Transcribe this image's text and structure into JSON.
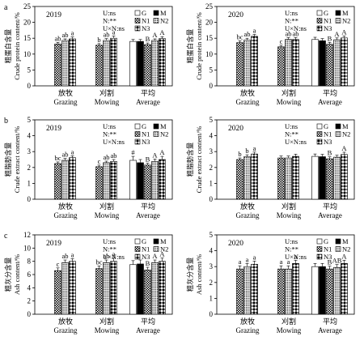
{
  "patterns": {
    "G": "white",
    "M": "black",
    "N1": "checker",
    "N2": "dots",
    "N3": "diamond"
  },
  "legend": {
    "keys": [
      "G",
      "M",
      "N1",
      "N2",
      "N3"
    ],
    "stats": [
      [
        "U:ns",
        "N:**",
        "U×N:ns"
      ],
      [
        "U:ns",
        "N:**",
        "U×N:ns"
      ],
      [
        "U:ns",
        "N:**",
        "U×N:ns"
      ]
    ]
  },
  "chart_data": [
    {
      "type": "bar",
      "row_label": "a",
      "year": "2019",
      "ylabel_cn": "粗蛋白含量",
      "ylabel_en": "Crude protein content/%",
      "ylim": [
        0,
        25
      ],
      "yticks": [
        0,
        5,
        10,
        15,
        20,
        25
      ],
      "groups": [
        {
          "cn": "放牧",
          "en": "Grazing"
        },
        {
          "cn": "刈割",
          "en": "Mowing"
        },
        {
          "cn": "平均",
          "en": "Average"
        }
      ],
      "series": [
        "G",
        "M",
        "N1",
        "N2",
        "N3"
      ],
      "values": [
        [
          null,
          null,
          13.2,
          14.3,
          14.8
        ],
        [
          null,
          null,
          12.8,
          14.3,
          15.0
        ],
        [
          14.0,
          14.0,
          13.0,
          14.3,
          14.9
        ]
      ],
      "errors": [
        [
          null,
          null,
          0.5,
          0.5,
          0.6
        ],
        [
          null,
          null,
          0.5,
          0.6,
          0.7
        ],
        [
          0.6,
          0.6,
          0.5,
          0.5,
          0.6
        ]
      ],
      "letters": [
        [
          "",
          "",
          "ab",
          "ab",
          "a"
        ],
        [
          "",
          "",
          "b",
          "ab",
          "a"
        ],
        [
          "",
          "",
          "B",
          "A",
          "A"
        ]
      ]
    },
    {
      "type": "bar",
      "row_label": "",
      "year": "2020",
      "ylabel_cn": "粗蛋白含量",
      "ylabel_en": "Crude protein content/%",
      "ylim": [
        0,
        25
      ],
      "yticks": [
        0,
        5,
        10,
        15,
        20,
        25
      ],
      "groups": [
        {
          "cn": "放牧",
          "en": "Grazing"
        },
        {
          "cn": "刈割",
          "en": "Mowing"
        },
        {
          "cn": "平均",
          "en": "Average"
        }
      ],
      "series": [
        "G",
        "M",
        "N1",
        "N2",
        "N3"
      ],
      "values": [
        [
          null,
          null,
          13.6,
          14.4,
          15.6
        ],
        [
          null,
          null,
          12.3,
          14.6,
          14.6
        ],
        [
          14.6,
          14.2,
          13.1,
          14.5,
          15.1
        ]
      ],
      "errors": [
        [
          null,
          null,
          0.6,
          0.6,
          0.6
        ],
        [
          null,
          null,
          0.5,
          0.6,
          0.6
        ],
        [
          0.7,
          0.7,
          0.6,
          0.6,
          0.6
        ]
      ],
      "letters": [
        [
          "",
          "",
          "bc",
          "ab",
          "a"
        ],
        [
          "",
          "",
          "c",
          "ab",
          "ab"
        ],
        [
          "",
          "",
          "B",
          "A",
          "A"
        ]
      ]
    },
    {
      "type": "bar",
      "row_label": "b",
      "year": "2019",
      "ylabel_cn": "粗脂肪含量",
      "ylabel_en": "Crude extract content/%",
      "ylim": [
        0,
        5
      ],
      "yticks": [
        0,
        1,
        2,
        3,
        4,
        5
      ],
      "groups": [
        {
          "cn": "放牧",
          "en": "Grazing"
        },
        {
          "cn": "刈割",
          "en": "Mowing"
        },
        {
          "cn": "平均",
          "en": "Average"
        }
      ],
      "series": [
        "G",
        "M",
        "N1",
        "N2",
        "N3"
      ],
      "values": [
        [
          null,
          null,
          2.25,
          2.45,
          2.62
        ],
        [
          null,
          null,
          2.05,
          2.3,
          2.38
        ],
        [
          2.45,
          2.3,
          2.15,
          2.38,
          2.5
        ]
      ],
      "errors": [
        [
          null,
          null,
          0.1,
          0.12,
          0.12
        ],
        [
          null,
          null,
          0.1,
          0.1,
          0.12
        ],
        [
          0.25,
          0.2,
          0.12,
          0.15,
          0.2
        ]
      ],
      "letters": [
        [
          "",
          "",
          "bc",
          "ab",
          "a"
        ],
        [
          "",
          "",
          "c",
          "ab",
          "ab"
        ],
        [
          "#",
          "",
          "B",
          "A",
          "A"
        ]
      ]
    },
    {
      "type": "bar",
      "row_label": "",
      "year": "2020",
      "ylabel_cn": "粗脂肪含量",
      "ylabel_en": "Crude extract content/%",
      "ylim": [
        0,
        5
      ],
      "yticks": [
        0,
        1,
        2,
        3,
        4,
        5
      ],
      "groups": [
        {
          "cn": "放牧",
          "en": "Grazing"
        },
        {
          "cn": "刈割",
          "en": "Mowing"
        },
        {
          "cn": "平均",
          "en": "Average"
        }
      ],
      "series": [
        "G",
        "M",
        "N1",
        "N2",
        "N3"
      ],
      "values": [
        [
          null,
          null,
          2.5,
          2.68,
          2.85
        ],
        [
          null,
          null,
          2.6,
          2.6,
          2.7
        ],
        [
          2.7,
          2.68,
          2.55,
          2.65,
          2.82
        ]
      ],
      "errors": [
        [
          null,
          null,
          0.1,
          0.12,
          0.12
        ],
        [
          null,
          null,
          0.12,
          0.12,
          0.14
        ],
        [
          0.15,
          0.15,
          0.12,
          0.12,
          0.14
        ]
      ],
      "letters": [
        [
          "",
          "",
          "b",
          "b",
          "a"
        ],
        [
          "",
          "",
          "",
          "",
          ""
        ],
        [
          "",
          "",
          "B",
          "",
          "A"
        ]
      ]
    },
    {
      "type": "bar",
      "row_label": "c",
      "year": "2019",
      "ylabel_cn": "粗灰分含量",
      "ylabel_en": "Ash content/%",
      "ylim": [
        0,
        12
      ],
      "yticks": [
        0,
        2,
        4,
        6,
        8,
        10,
        12
      ],
      "groups": [
        {
          "cn": "放牧",
          "en": "Grazing"
        },
        {
          "cn": "刈割",
          "en": "Mowing"
        },
        {
          "cn": "平均",
          "en": "Average"
        }
      ],
      "series": [
        "G",
        "M",
        "N1",
        "N2",
        "N3"
      ],
      "values": [
        [
          null,
          null,
          6.6,
          7.8,
          8.0
        ],
        [
          null,
          null,
          6.9,
          7.8,
          8.0
        ],
        [
          7.5,
          7.6,
          6.7,
          7.8,
          8.0
        ]
      ],
      "errors": [
        [
          null,
          null,
          0.4,
          0.4,
          0.4
        ],
        [
          null,
          null,
          0.4,
          0.4,
          0.5
        ],
        [
          0.6,
          0.6,
          0.4,
          0.4,
          0.5
        ]
      ],
      "letters": [
        [
          "",
          "",
          "c",
          "ab",
          "a"
        ],
        [
          "",
          "",
          "bc",
          "ab",
          "a"
        ],
        [
          "",
          "",
          "B",
          "A",
          "A"
        ]
      ]
    },
    {
      "type": "bar",
      "row_label": "",
      "year": "2020",
      "ylabel_cn": "粗灰分含量",
      "ylabel_en": "Ash content/%",
      "ylim": [
        0,
        5
      ],
      "yticks": [
        0,
        1,
        2,
        3,
        4,
        5
      ],
      "groups": [
        {
          "cn": "放牧",
          "en": "Grazing"
        },
        {
          "cn": "刈割",
          "en": "Mowing"
        },
        {
          "cn": "平均",
          "en": "Average"
        }
      ],
      "series": [
        "G",
        "M",
        "N1",
        "N2",
        "N3"
      ],
      "values": [
        [
          null,
          null,
          2.85,
          3.0,
          3.15
        ],
        [
          null,
          null,
          2.85,
          2.85,
          3.2
        ],
        [
          3.0,
          3.0,
          2.85,
          2.95,
          3.2
        ]
      ],
      "errors": [
        [
          null,
          null,
          0.2,
          0.2,
          0.2
        ],
        [
          null,
          null,
          0.2,
          0.2,
          0.2
        ],
        [
          0.2,
          0.2,
          0.18,
          0.18,
          0.2
        ]
      ],
      "letters": [
        [
          "",
          "",
          "a",
          "a",
          "a"
        ],
        [
          "",
          "",
          "a",
          "a",
          "a"
        ],
        [
          "",
          "",
          "B",
          "AB",
          "A"
        ]
      ]
    }
  ]
}
